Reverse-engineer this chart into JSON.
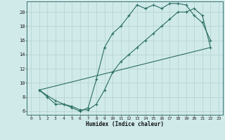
{
  "title": "",
  "xlabel": "Humidex (Indice chaleur)",
  "bg_color": "#d0eaea",
  "grid_color": "#b8d4d4",
  "line_color": "#2a6e62",
  "xlim": [
    -0.5,
    23.5
  ],
  "ylim": [
    5.5,
    21.5
  ],
  "xticks": [
    0,
    1,
    2,
    3,
    4,
    5,
    6,
    7,
    8,
    9,
    10,
    11,
    12,
    13,
    14,
    15,
    16,
    17,
    18,
    19,
    20,
    21,
    22,
    23
  ],
  "yticks": [
    6,
    8,
    10,
    12,
    14,
    16,
    18,
    20
  ],
  "curve1_x": [
    1,
    2,
    3,
    4,
    5,
    6,
    7,
    8,
    9,
    10,
    11,
    12,
    13,
    14,
    15,
    16,
    17,
    18,
    19,
    20,
    21,
    22
  ],
  "curve1_y": [
    9,
    8,
    7,
    7,
    6.5,
    6,
    6.5,
    10.5,
    15,
    17,
    18,
    19.5,
    21,
    20.5,
    21,
    20.5,
    21.2,
    21.2,
    21,
    19.5,
    18.5,
    16
  ],
  "curve2_x": [
    1,
    2,
    3,
    4,
    5,
    6,
    7,
    8,
    9,
    10,
    11,
    12,
    13,
    14,
    15,
    16,
    17,
    18,
    19,
    20,
    21,
    22
  ],
  "curve2_y": [
    9,
    8.2,
    7.5,
    7.0,
    6.7,
    6.2,
    6.2,
    7.0,
    9.0,
    11.5,
    13,
    14,
    15,
    16,
    17,
    18,
    19,
    20,
    20,
    20.5,
    19.5,
    15
  ],
  "curve3_x": [
    1,
    22
  ],
  "curve3_y": [
    9,
    15
  ]
}
